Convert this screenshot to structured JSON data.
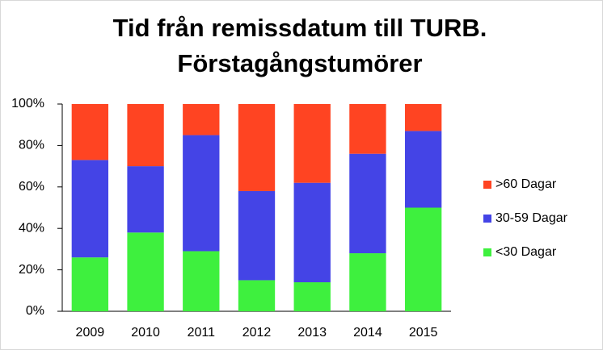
{
  "chart_data": {
    "type": "stacked_bar",
    "title": "Tid från remissdatum till TURB. Förstagångstumörer",
    "categories": [
      "2009",
      "2010",
      "2011",
      "2012",
      "2013",
      "2014",
      "2015"
    ],
    "series": [
      {
        "name": "<30 Dagar",
        "color": "#3ef03e",
        "values": [
          26,
          38,
          29,
          15,
          14,
          28,
          50
        ]
      },
      {
        "name": "30-59 Dagar",
        "color": "#4444e6",
        "values": [
          47,
          32,
          56,
          43,
          48,
          48,
          37
        ]
      },
      {
        "name": ">60 Dagar",
        "color": "#ff4422",
        "values": [
          27,
          30,
          15,
          42,
          38,
          24,
          13
        ]
      }
    ],
    "ylim": [
      0,
      100
    ],
    "yticks": [
      {
        "value": 0,
        "label": "0%"
      },
      {
        "value": 20,
        "label": "20%"
      },
      {
        "value": 40,
        "label": "40%"
      },
      {
        "value": 60,
        "label": "60%"
      },
      {
        "value": 80,
        "label": "80%"
      },
      {
        "value": 100,
        "label": "100%"
      }
    ],
    "legend": "right"
  }
}
